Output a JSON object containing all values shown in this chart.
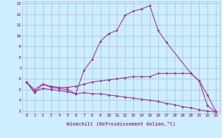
{
  "xlabel": "Windchill (Refroidissement éolien,°C)",
  "line1_x": [
    0,
    1,
    2,
    3,
    4,
    5,
    6,
    7,
    8,
    9,
    10,
    11,
    12,
    13,
    14,
    15,
    16,
    17,
    20,
    21,
    22,
    23
  ],
  "line1_y": [
    5.7,
    4.7,
    5.5,
    5.2,
    5.1,
    5.0,
    4.6,
    6.8,
    7.8,
    9.5,
    10.2,
    10.5,
    11.9,
    12.3,
    12.5,
    12.8,
    10.5,
    9.4,
    6.5,
    5.8,
    3.5,
    2.9
  ],
  "line2_x": [
    0,
    1,
    2,
    3,
    4,
    5,
    6,
    7,
    8,
    9,
    10,
    11,
    12,
    13,
    14,
    15,
    16,
    17,
    18,
    19,
    20,
    21,
    22,
    23
  ],
  "line2_y": [
    5.7,
    5.0,
    5.5,
    5.3,
    5.2,
    5.2,
    5.3,
    5.5,
    5.7,
    5.8,
    5.9,
    6.0,
    6.1,
    6.2,
    6.2,
    6.2,
    6.5,
    6.5,
    6.5,
    6.5,
    6.5,
    5.8,
    4.5,
    3.0
  ],
  "line3_x": [
    0,
    1,
    2,
    3,
    4,
    5,
    6,
    7,
    8,
    9,
    10,
    11,
    12,
    13,
    14,
    15,
    16,
    17,
    18,
    19,
    20,
    21,
    22,
    23
  ],
  "line3_y": [
    5.7,
    4.8,
    5.1,
    5.0,
    4.9,
    4.8,
    4.6,
    4.7,
    4.6,
    4.6,
    4.5,
    4.4,
    4.3,
    4.2,
    4.1,
    4.0,
    3.9,
    3.7,
    3.6,
    3.4,
    3.3,
    3.1,
    3.0,
    2.9
  ],
  "line_color": "#993399",
  "bg_color": "#cceeff",
  "grid_color": "#aabbcc",
  "ylim": [
    3,
    13
  ],
  "xlim": [
    0,
    23
  ],
  "yticks": [
    3,
    4,
    5,
    6,
    7,
    8,
    9,
    10,
    11,
    12,
    13
  ],
  "xticks": [
    0,
    1,
    2,
    3,
    4,
    5,
    6,
    7,
    8,
    9,
    10,
    11,
    12,
    13,
    14,
    15,
    16,
    17,
    18,
    19,
    20,
    21,
    22,
    23
  ]
}
